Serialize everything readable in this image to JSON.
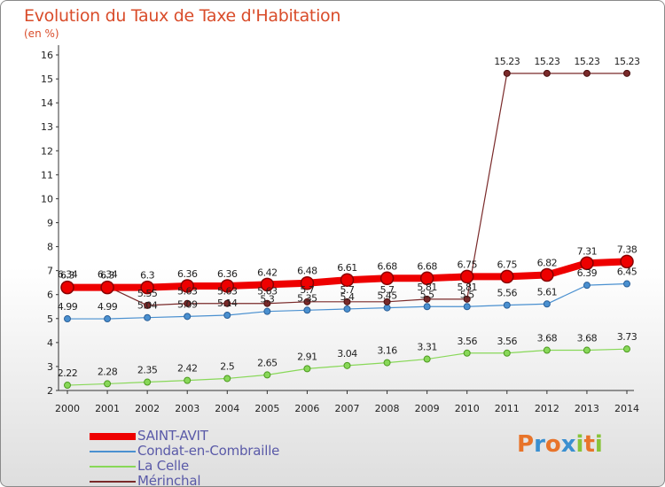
{
  "header": {
    "title": "Evolution du Taux de Taxe d'Habitation",
    "subtitle": "(en %)"
  },
  "logo_text": "Proxiti",
  "chart_data": {
    "type": "line",
    "title": "Evolution du Taux de Taxe d'Habitation",
    "subtitle": "(en %)",
    "x": [
      "2000",
      "2001",
      "2002",
      "2003",
      "2004",
      "2005",
      "2006",
      "2007",
      "2008",
      "2009",
      "2010",
      "2011",
      "2012",
      "2013",
      "2014"
    ],
    "ylim": [
      2,
      16
    ],
    "yticks": [
      2,
      3,
      4,
      5,
      6,
      7,
      8,
      9,
      10,
      11,
      12,
      13,
      14,
      15,
      16
    ],
    "grid": false,
    "legend_placement": "bottom-left",
    "series": [
      {
        "name": "SAINT-AVIT",
        "color": "#ee0000",
        "values": [
          6.3,
          6.3,
          6.3,
          6.36,
          6.36,
          6.42,
          6.48,
          6.61,
          6.68,
          6.68,
          6.75,
          6.75,
          6.82,
          7.31,
          7.38
        ],
        "labels": [
          "6.3",
          "6.3",
          "6.3",
          "6.36",
          "6.36",
          "6.42",
          "6.48",
          "6.61",
          "6.68",
          "6.68",
          "6.75",
          "6.75",
          "6.82",
          "7.31",
          "7.38"
        ]
      },
      {
        "name": "Condat-en-Combraille",
        "color": "#4a90d0",
        "values": [
          4.99,
          4.99,
          5.04,
          5.09,
          5.14,
          5.3,
          5.35,
          5.4,
          5.45,
          5.5,
          5.5,
          5.56,
          5.61,
          6.39,
          6.45
        ],
        "labels": [
          "4.99",
          "4.99",
          "5.04",
          "5.09",
          "5.14",
          "5.3",
          "5.35",
          "5.4",
          "5.45",
          "5.5",
          "5.5",
          "5.56",
          "5.61",
          "6.39",
          "6.45"
        ]
      },
      {
        "name": "La Celle",
        "color": "#88d858",
        "values": [
          2.22,
          2.28,
          2.35,
          2.42,
          2.5,
          2.65,
          2.91,
          3.04,
          3.16,
          3.31,
          3.56,
          3.56,
          3.68,
          3.68,
          3.73
        ],
        "labels": [
          "2.22",
          "2.28",
          "2.35",
          "2.42",
          "2.5",
          "2.65",
          "2.91",
          "3.04",
          "3.16",
          "3.31",
          "3.56",
          "3.56",
          "3.68",
          "3.68",
          "3.73"
        ]
      },
      {
        "name": "Mérinchal",
        "color": "#7a2a2a",
        "values": [
          6.34,
          6.34,
          5.55,
          5.63,
          5.63,
          5.63,
          5.7,
          5.7,
          5.7,
          5.81,
          5.81,
          15.23,
          15.23,
          15.23,
          15.23
        ],
        "labels": [
          "6.34",
          "6.34",
          "5.55",
          "5.63",
          "5.63",
          "5.63",
          "5.7",
          "5.7",
          "5.7",
          "5.81",
          "5.81",
          "15.23",
          "15.23",
          "15.23",
          "15.23"
        ]
      }
    ]
  }
}
